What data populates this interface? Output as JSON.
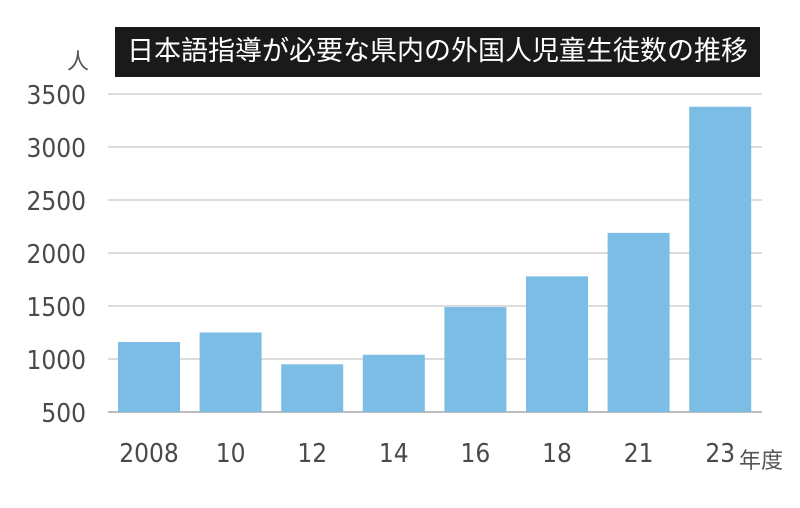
{
  "chart_data": {
    "type": "bar",
    "title": "日本語指導が必要な県内の外国人児童生徒数の推移",
    "ylabel_unit": "人",
    "xlabel_unit": "年度",
    "categories": [
      "2008",
      "10",
      "12",
      "14",
      "16",
      "18",
      "21",
      "23"
    ],
    "values": [
      1160,
      1250,
      950,
      1040,
      1490,
      1780,
      2190,
      3380
    ],
    "yticks": [
      500,
      1000,
      1500,
      2000,
      2500,
      3000,
      3500
    ],
    "ylim": [
      500,
      3500
    ],
    "grid": true,
    "colors": {
      "bar": "#7bbde4",
      "grid": "#d0d0d0",
      "title_bg": "#1a1a1a"
    }
  }
}
